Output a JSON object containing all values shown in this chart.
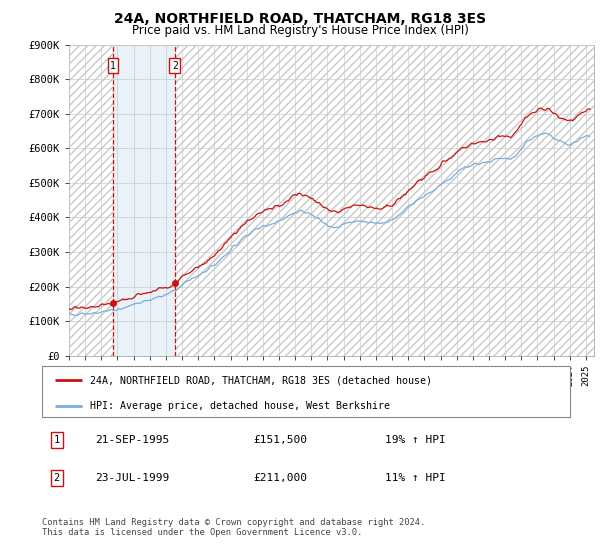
{
  "title": "24A, NORTHFIELD ROAD, THATCHAM, RG18 3ES",
  "subtitle": "Price paid vs. HM Land Registry's House Price Index (HPI)",
  "legend_line1": "24A, NORTHFIELD ROAD, THATCHAM, RG18 3ES (detached house)",
  "legend_line2": "HPI: Average price, detached house, West Berkshire",
  "sale1_label": "21-SEP-1995",
  "sale1_price": 151500,
  "sale1_price_str": "£151,500",
  "sale1_pct": "19% ↑ HPI",
  "sale1_year": 1995.72,
  "sale2_label": "23-JUL-1999",
  "sale2_price": 211000,
  "sale2_price_str": "£211,000",
  "sale2_pct": "11% ↑ HPI",
  "sale2_year": 1999.55,
  "footer": "Contains HM Land Registry data © Crown copyright and database right 2024.\nThis data is licensed under the Open Government Licence v3.0.",
  "ylim": [
    0,
    900000
  ],
  "yticks": [
    0,
    100000,
    200000,
    300000,
    400000,
    500000,
    600000,
    700000,
    800000,
    900000
  ],
  "ytick_labels": [
    "£0",
    "£100K",
    "£200K",
    "£300K",
    "£400K",
    "£500K",
    "£600K",
    "£700K",
    "£800K",
    "£900K"
  ],
  "hpi_color": "#7aaddb",
  "price_color": "#cc1111",
  "hatch_edgecolor": "#c8c8c8",
  "blue_fill": "#d8e8f5",
  "grid_color": "#cccccc",
  "xmin": 1993.0,
  "xmax": 2025.5
}
